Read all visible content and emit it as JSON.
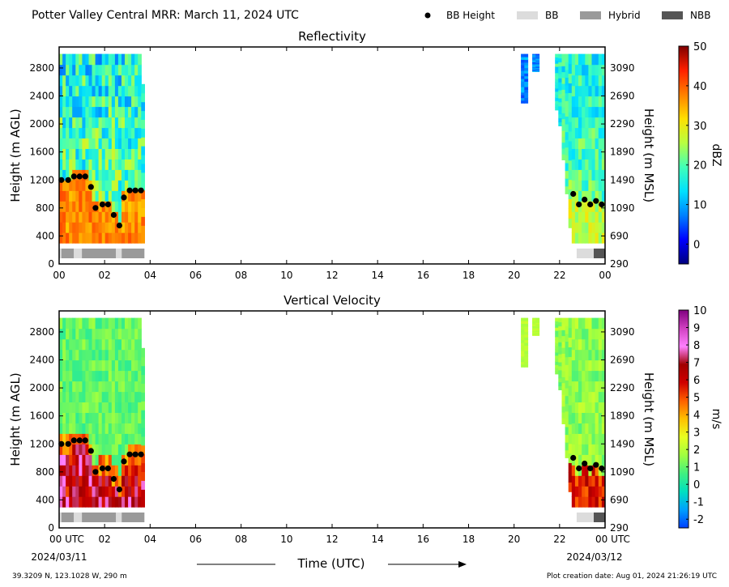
{
  "header": {
    "title": "Potter Valley Central MRR:  March 11, 2024 UTC"
  },
  "legend": {
    "items": [
      {
        "name": "BB Height",
        "kind": "dot",
        "color": "#000000"
      },
      {
        "name": "BB",
        "kind": "box",
        "color": "#dcdcdc"
      },
      {
        "name": "Hybrid",
        "kind": "box",
        "color": "#9a9a9a"
      },
      {
        "name": "NBB",
        "kind": "box",
        "color": "#555555"
      }
    ]
  },
  "x_axis": {
    "ticks": [
      0,
      2,
      4,
      6,
      8,
      10,
      12,
      14,
      16,
      18,
      20,
      22,
      24
    ],
    "tick_labels": [
      "00",
      "02",
      "04",
      "06",
      "08",
      "10",
      "12",
      "14",
      "16",
      "18",
      "20",
      "22",
      "00"
    ],
    "bottom_tick_labels": [
      "00 UTC",
      "02",
      "04",
      "06",
      "08",
      "10",
      "12",
      "14",
      "16",
      "18",
      "20",
      "22",
      "00 UTC"
    ],
    "start_date": "2024/03/11",
    "end_date": "2024/03/12",
    "label": "Time (UTC)"
  },
  "footer": {
    "location": "39.3209 N, 123.1028 W, 290 m",
    "creation": "Plot creation date: Aug 01, 2024 21:26:19 UTC"
  },
  "chart_data": [
    {
      "type": "heatmap",
      "title": "Reflectivity",
      "ylabel": "Height (m AGL)",
      "ylabel_right": "Height (m MSL)",
      "xlim": [
        0,
        24
      ],
      "ylim": [
        0,
        3100
      ],
      "yticks": [
        0,
        400,
        800,
        1200,
        1600,
        2000,
        2400,
        2800
      ],
      "yticks_right": [
        "290",
        "690",
        "1090",
        "1490",
        "1890",
        "2290",
        "2690",
        "3090"
      ],
      "colorbar": {
        "label": "dBZ",
        "min": -5,
        "max": 50,
        "ticks": [
          "0",
          "10",
          "20",
          "30",
          "40",
          "50"
        ],
        "stops": [
          "#00007f",
          "#0000ff",
          "#0080ff",
          "#00e0ff",
          "#40ffb8",
          "#b8ff40",
          "#ffe000",
          "#ff8000",
          "#ff2000",
          "#7f0000"
        ]
      },
      "data_segments": [
        {
          "x": [
            0.0,
            3.75
          ],
          "note": "precipitation echo 300–3000 m; strongest (35–45 dBZ) below 1300 m"
        },
        {
          "x": [
            20.3,
            20.6
          ],
          "top": 3000,
          "bottom": 2300,
          "note": "weak echo 5–15 dBZ"
        },
        {
          "x": [
            20.8,
            21.1
          ],
          "top": 3000,
          "bottom": 2750,
          "note": "weak echo"
        },
        {
          "x": [
            21.8,
            24.0
          ],
          "note": "echo 300–3000 m; 15–35 dBZ"
        }
      ],
      "bb_height": {
        "x": [
          0.1,
          0.4,
          0.65,
          0.9,
          1.15,
          1.4,
          1.6,
          1.9,
          2.15,
          2.4,
          2.65,
          2.85,
          3.1,
          3.35,
          3.6,
          22.6,
          22.85,
          23.1,
          23.35,
          23.6,
          23.85
        ],
        "y": [
          1200,
          1200,
          1250,
          1250,
          1250,
          1100,
          800,
          850,
          850,
          700,
          550,
          950,
          1050,
          1050,
          1050,
          1000,
          850,
          920,
          850,
          900,
          850
        ]
      },
      "bb_type": [
        {
          "start": 0.0,
          "end": 0.1,
          "type": "BB"
        },
        {
          "start": 0.1,
          "end": 0.65,
          "type": "Hybrid"
        },
        {
          "start": 0.65,
          "end": 1.0,
          "type": "BB"
        },
        {
          "start": 1.0,
          "end": 2.5,
          "type": "Hybrid"
        },
        {
          "start": 2.5,
          "end": 2.75,
          "type": "BB"
        },
        {
          "start": 2.75,
          "end": 3.75,
          "type": "Hybrid"
        },
        {
          "start": 22.75,
          "end": 23.5,
          "type": "BB"
        },
        {
          "start": 23.5,
          "end": 24.0,
          "type": "NBB"
        }
      ]
    },
    {
      "type": "heatmap",
      "title": "Vertical Velocity",
      "ylabel": "Height (m AGL)",
      "ylabel_right": "Height (m MSL)",
      "xlim": [
        0,
        24
      ],
      "ylim": [
        0,
        3100
      ],
      "yticks": [
        0,
        400,
        800,
        1200,
        1600,
        2000,
        2400,
        2800
      ],
      "yticks_right": [
        "290",
        "690",
        "1090",
        "1490",
        "1890",
        "2290",
        "2690",
        "3090"
      ],
      "colorbar": {
        "label": "m/s",
        "min": -2.5,
        "max": 10,
        "ticks": [
          "-2",
          "-1",
          "0",
          "1",
          "2",
          "3",
          "4",
          "5",
          "6",
          "7",
          "8",
          "9",
          "10"
        ],
        "stops": [
          "#0040ff",
          "#00a0ff",
          "#00e0c0",
          "#40f080",
          "#a0ff40",
          "#e8ff20",
          "#ffc000",
          "#ff6000",
          "#d00000",
          "#a00000",
          "#ff80ff",
          "#d040c0",
          "#800080"
        ]
      },
      "data_segments": [
        {
          "x": [
            0.0,
            3.75
          ],
          "note": "0.5–2 m/s aloft; 6–9 m/s below 1200 m"
        },
        {
          "x": [
            20.3,
            20.6
          ],
          "top": 3000,
          "bottom": 2300,
          "note": "~2 m/s"
        },
        {
          "x": [
            20.8,
            21.1
          ],
          "top": 3000,
          "bottom": 2750,
          "note": "~2 m/s"
        },
        {
          "x": [
            21.8,
            24.0
          ],
          "note": "1–3 m/s aloft; 5–7 m/s below 1000 m"
        }
      ],
      "bb_height": {
        "x": [
          0.1,
          0.4,
          0.65,
          0.9,
          1.15,
          1.4,
          1.6,
          1.9,
          2.15,
          2.4,
          2.65,
          2.85,
          3.1,
          3.35,
          3.6,
          22.6,
          22.85,
          23.1,
          23.35,
          23.6,
          23.85
        ],
        "y": [
          1200,
          1200,
          1250,
          1250,
          1250,
          1100,
          800,
          850,
          850,
          700,
          550,
          950,
          1050,
          1050,
          1050,
          1000,
          850,
          920,
          850,
          900,
          850
        ]
      },
      "bb_type": [
        {
          "start": 0.0,
          "end": 0.1,
          "type": "BB"
        },
        {
          "start": 0.1,
          "end": 0.65,
          "type": "Hybrid"
        },
        {
          "start": 0.65,
          "end": 1.0,
          "type": "BB"
        },
        {
          "start": 1.0,
          "end": 2.5,
          "type": "Hybrid"
        },
        {
          "start": 2.5,
          "end": 2.75,
          "type": "BB"
        },
        {
          "start": 2.75,
          "end": 3.75,
          "type": "Hybrid"
        },
        {
          "start": 22.75,
          "end": 23.5,
          "type": "BB"
        },
        {
          "start": 23.5,
          "end": 24.0,
          "type": "NBB"
        }
      ]
    }
  ]
}
